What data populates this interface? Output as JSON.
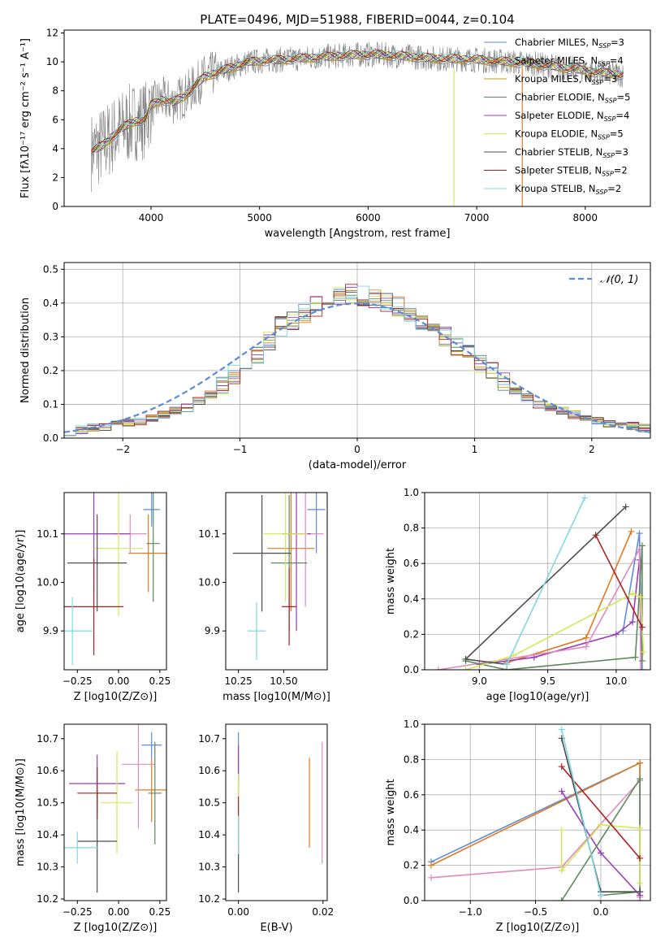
{
  "page_title": "PLATE=0496, MJD=51988, FIBERID=0044, z=0.104",
  "colors": {
    "blue": "#5b8bd9",
    "orange": "#e07b1f",
    "olive": "#b8a01c",
    "green": "#5c8a5c",
    "purple": "#9a3cb8",
    "yellow": "#d4e85a",
    "gray": "#4d4d4d",
    "red": "#b01f1f",
    "cyan": "#7fd8e0",
    "pink": "#e08ac0",
    "data": "#808080"
  },
  "chart_data": [
    {
      "id": "spectrum",
      "type": "line",
      "title": "PLATE=0496, MJD=51988, FIBERID=0044, z=0.104",
      "xlabel": "wavelength [Angstrom, rest frame]",
      "ylabel": "Flux [fλ10⁻¹⁷ erg cm⁻² s⁻¹ A⁻¹]",
      "xlim": [
        3200,
        8600
      ],
      "ylim": [
        0,
        12.2
      ],
      "xticks": [
        4000,
        5000,
        6000,
        7000,
        8000
      ],
      "yticks": [
        0,
        2,
        4,
        6,
        8,
        10,
        12
      ],
      "legend_position": "right",
      "continuum": {
        "x": [
          3450,
          3550,
          3650,
          3750,
          3850,
          3950,
          4000,
          4100,
          4200,
          4300,
          4400,
          4500,
          4700,
          4900,
          5100,
          5300,
          5500,
          5700,
          5900,
          6100,
          6300,
          6500,
          6700,
          6900,
          7100,
          7300,
          7500,
          7700,
          7900,
          8100,
          8350
        ],
        "y": [
          3.8,
          4.2,
          4.9,
          5.5,
          5.9,
          6.0,
          7.0,
          7.4,
          7.2,
          7.6,
          8.3,
          9.0,
          9.5,
          10.0,
          10.1,
          10.2,
          10.3,
          10.4,
          10.5,
          10.5,
          10.4,
          10.3,
          10.2,
          10.2,
          10.1,
          10.0,
          9.9,
          9.7,
          9.5,
          9.3,
          9.1
        ]
      },
      "series": [
        {
          "name": "Chabrier MILES, N_SSP=3",
          "color": "blue"
        },
        {
          "name": "Salpeter MILES, N_SSP=4",
          "color": "orange"
        },
        {
          "name": "Kroupa MILES, N_SSP=3",
          "color": "olive"
        },
        {
          "name": "Chabrier ELODIE, N_SSP=5",
          "color": "green"
        },
        {
          "name": "Salpeter ELODIE, N_SSP=4",
          "color": "purple"
        },
        {
          "name": "Kroupa ELODIE, N_SSP=5",
          "color": "yellow"
        },
        {
          "name": "Chabrier STELIB, N_SSP=3",
          "color": "gray"
        },
        {
          "name": "Salpeter STELIB, N_SSP=2",
          "color": "red"
        },
        {
          "name": "Kroupa STELIB, N_SSP=2",
          "color": "cyan"
        }
      ],
      "legend": [
        {
          "pre": "Chabrier MILES, N",
          "sub": "SSP",
          "post": "=3",
          "color": "blue"
        },
        {
          "pre": "Salpeter MILES, N",
          "sub": "SSP",
          "post": "=4",
          "color": "orange"
        },
        {
          "pre": "Kroupa MILES, N",
          "sub": "SSP",
          "post": "=3",
          "color": "olive"
        },
        {
          "pre": "Chabrier ELODIE, N",
          "sub": "SSP",
          "post": "=5",
          "color": "green"
        },
        {
          "pre": "Salpeter ELODIE, N",
          "sub": "SSP",
          "post": "=4",
          "color": "purple"
        },
        {
          "pre": "Kroupa ELODIE, N",
          "sub": "SSP",
          "post": "=5",
          "color": "yellow"
        },
        {
          "pre": "Chabrier STELIB, N",
          "sub": "SSP",
          "post": "=3",
          "color": "gray"
        },
        {
          "pre": "Salpeter STELIB, N",
          "sub": "SSP",
          "post": "=2",
          "color": "red"
        },
        {
          "pre": "Kroupa STELIB, N",
          "sub": "SSP",
          "post": "=2",
          "color": "cyan"
        }
      ],
      "vertical_spikes": [
        {
          "x": 6790,
          "color": "yellow"
        },
        {
          "x": 7420,
          "color": "orange"
        }
      ]
    },
    {
      "id": "residuals",
      "type": "line",
      "xlabel": "(data-model)/error",
      "ylabel": "Normed distribution",
      "xlim": [
        -2.5,
        2.5
      ],
      "ylim": [
        0,
        0.52
      ],
      "xticks": [
        -2,
        -1,
        0,
        1,
        2
      ],
      "yticks": [
        0.0,
        0.1,
        0.2,
        0.3,
        0.4,
        0.5
      ],
      "grid": true,
      "legend_position": "top-right",
      "reference_curve": {
        "name": "N(0,1)",
        "legend_text": "𝒩(0, 1)",
        "color": "blue",
        "style": "dashed"
      },
      "bin_edges": [
        -2.5,
        -2.4,
        -2.3,
        -2.2,
        -2.1,
        -2.0,
        -1.9,
        -1.8,
        -1.7,
        -1.6,
        -1.5,
        -1.4,
        -1.3,
        -1.2,
        -1.1,
        -1.0,
        -0.9,
        -0.8,
        -0.7,
        -0.6,
        -0.5,
        -0.4,
        -0.3,
        -0.2,
        -0.1,
        0.0,
        0.1,
        0.2,
        0.3,
        0.4,
        0.5,
        0.6,
        0.7,
        0.8,
        0.9,
        1.0,
        1.1,
        1.2,
        1.3,
        1.4,
        1.5,
        1.6,
        1.7,
        1.8,
        1.9,
        2.0,
        2.1,
        2.2,
        2.3,
        2.4,
        2.5
      ],
      "histogram": [
        0.02,
        0.025,
        0.03,
        0.035,
        0.04,
        0.045,
        0.05,
        0.06,
        0.07,
        0.08,
        0.09,
        0.11,
        0.13,
        0.16,
        0.19,
        0.21,
        0.25,
        0.29,
        0.33,
        0.35,
        0.37,
        0.39,
        0.41,
        0.42,
        0.43,
        0.42,
        0.41,
        0.4,
        0.39,
        0.37,
        0.35,
        0.33,
        0.3,
        0.27,
        0.25,
        0.22,
        0.2,
        0.17,
        0.14,
        0.12,
        0.1,
        0.09,
        0.08,
        0.07,
        0.06,
        0.05,
        0.045,
        0.04,
        0.035,
        0.03
      ]
    },
    {
      "id": "z-age",
      "type": "scatter",
      "xlabel": "Z [log10(Z/Z⊙)]",
      "ylabel": "age  [log10(age/yr)]",
      "xlim": [
        -0.33,
        0.29
      ],
      "ylim": [
        9.82,
        10.185
      ],
      "xticks": [
        -0.25,
        0.0,
        0.25
      ],
      "yticks": [
        9.9,
        10.0,
        10.1
      ],
      "points": [
        {
          "color": "blue",
          "x": 0.2,
          "y": 10.15,
          "xerr": 0.05,
          "yerr": 0.035
        },
        {
          "color": "orange",
          "x": 0.18,
          "y": 10.06,
          "xerr": 0.12,
          "yerr": 0.08
        },
        {
          "color": "pink",
          "x": 0.07,
          "y": 10.1,
          "xerr": 0.1,
          "yerr": 0.04
        },
        {
          "color": "green",
          "x": 0.21,
          "y": 10.08,
          "xerr": 0.04,
          "yerr": 0.12
        },
        {
          "color": "purple",
          "x": -0.15,
          "y": 10.1,
          "xerr": 0.22,
          "yerr": 0.12
        },
        {
          "color": "yellow",
          "x": 0.0,
          "y": 10.07,
          "xerr": 0.15,
          "yerr": 0.14
        },
        {
          "color": "gray",
          "x": -0.13,
          "y": 10.04,
          "xerr": 0.18,
          "yerr": 0.1
        },
        {
          "color": "red",
          "x": -0.15,
          "y": 9.95,
          "xerr": 0.18,
          "yerr": 0.1
        },
        {
          "color": "cyan",
          "x": -0.28,
          "y": 9.9,
          "xerr": 0.12,
          "yerr": 0.07
        }
      ]
    },
    {
      "id": "mass-age",
      "type": "scatter",
      "xlabel": "mass [log10(M/M⊙)]",
      "ylabel": "",
      "xlim": [
        10.18,
        10.74
      ],
      "ylim": [
        9.82,
        10.185
      ],
      "xticks": [
        10.25,
        10.5
      ],
      "yticks": [
        9.9,
        10.0,
        10.1
      ],
      "points": [
        {
          "color": "blue",
          "x": 10.68,
          "y": 10.15,
          "xerr": 0.05,
          "yerr": 0.09
        },
        {
          "color": "orange",
          "x": 10.54,
          "y": 10.07,
          "xerr": 0.13,
          "yerr": 0.13
        },
        {
          "color": "pink",
          "x": 10.62,
          "y": 10.1,
          "xerr": 0.1,
          "yerr": 0.15
        },
        {
          "color": "green",
          "x": 10.53,
          "y": 10.04,
          "xerr": 0.1,
          "yerr": 0.14
        },
        {
          "color": "purple",
          "x": 10.57,
          "y": 10.1,
          "xerr": 0.08,
          "yerr": 0.2
        },
        {
          "color": "yellow",
          "x": 10.51,
          "y": 10.1,
          "xerr": 0.12,
          "yerr": 0.14
        },
        {
          "color": "gray",
          "x": 10.38,
          "y": 10.06,
          "xerr": 0.16,
          "yerr": 0.12
        },
        {
          "color": "red",
          "x": 10.53,
          "y": 9.95,
          "xerr": 0.04,
          "yerr": 0.08
        },
        {
          "color": "cyan",
          "x": 10.35,
          "y": 9.9,
          "xerr": 0.05,
          "yerr": 0.06
        }
      ]
    },
    {
      "id": "age-weight",
      "type": "line",
      "xlabel": "age  [log10(age/yr)]",
      "ylabel": "mass weight",
      "xlim": [
        8.6,
        10.25
      ],
      "ylim": [
        0.0,
        1.0
      ],
      "xticks": [
        9.0,
        9.5,
        10.0
      ],
      "yticks": [
        0.0,
        0.2,
        0.4,
        0.6,
        0.8,
        1.0
      ],
      "grid": true,
      "series": [
        {
          "color": "blue",
          "x": [
            10.05,
            10.17,
            10.19
          ],
          "y": [
            0.22,
            0.77,
            0.0
          ]
        },
        {
          "color": "orange",
          "x": [
            10.11,
            9.78,
            9.2
          ],
          "y": [
            0.78,
            0.18,
            0.04
          ]
        },
        {
          "color": "purple",
          "x": [
            9.0,
            9.4,
            10.0,
            10.12,
            10.17
          ],
          "y": [
            0.03,
            0.07,
            0.2,
            0.27,
            0.62
          ]
        },
        {
          "color": "pink",
          "x": [
            8.7,
            9.78,
            10.17,
            10.18
          ],
          "y": [
            0.0,
            0.13,
            0.68,
            0.0
          ]
        },
        {
          "color": "green",
          "x": [
            8.9,
            9.2,
            10.14,
            10.19,
            10.19
          ],
          "y": [
            0.05,
            0.0,
            0.07,
            0.7,
            0.05
          ]
        },
        {
          "color": "yellow",
          "x": [
            8.9,
            9.25,
            10.12,
            10.18,
            10.2
          ],
          "y": [
            0.0,
            0.08,
            0.43,
            0.41,
            0.1
          ]
        },
        {
          "color": "gray",
          "x": [
            9.2,
            8.9,
            10.07
          ],
          "y": [
            0.03,
            0.06,
            0.92
          ]
        },
        {
          "color": "red",
          "x": [
            9.85,
            10.19
          ],
          "y": [
            0.76,
            0.24
          ]
        },
        {
          "color": "cyan",
          "x": [
            9.2,
            9.77
          ],
          "y": [
            0.03,
            0.97
          ]
        }
      ]
    },
    {
      "id": "z-mass",
      "type": "scatter",
      "xlabel": "Z [log10(Z/Z⊙)]",
      "ylabel": "mass [log10(M/M⊙)]",
      "xlim": [
        -0.33,
        0.29
      ],
      "ylim": [
        10.195,
        10.745
      ],
      "xticks": [
        -0.25,
        0.0,
        0.25
      ],
      "yticks": [
        10.2,
        10.3,
        10.4,
        10.5,
        10.6,
        10.7
      ],
      "points": [
        {
          "color": "blue",
          "x": 0.2,
          "y": 10.68,
          "xerr": 0.06,
          "yerr": 0.04
        },
        {
          "color": "orange",
          "x": 0.2,
          "y": 10.54,
          "xerr": 0.1,
          "yerr": 0.1
        },
        {
          "color": "pink",
          "x": 0.12,
          "y": 10.62,
          "xerr": 0.1,
          "yerr": 0.2
        },
        {
          "color": "green",
          "x": 0.22,
          "y": 10.53,
          "xerr": 0.04,
          "yerr": 0.16
        },
        {
          "color": "purple",
          "x": -0.13,
          "y": 10.56,
          "xerr": 0.17,
          "yerr": 0.09
        },
        {
          "color": "yellow",
          "x": -0.01,
          "y": 10.5,
          "xerr": 0.1,
          "yerr": 0.16
        },
        {
          "color": "gray",
          "x": -0.13,
          "y": 10.38,
          "xerr": 0.12,
          "yerr": 0.16
        },
        {
          "color": "red",
          "x": -0.13,
          "y": 10.53,
          "xerr": 0.12,
          "yerr": 0.08
        },
        {
          "color": "cyan",
          "x": -0.25,
          "y": 10.36,
          "xerr": 0.12,
          "yerr": 0.05
        }
      ]
    },
    {
      "id": "ebv-mass",
      "type": "scatter",
      "xlabel": "E(B-V)",
      "ylabel": "",
      "xlim": [
        -0.003,
        0.021
      ],
      "ylim": [
        10.195,
        10.745
      ],
      "xticks": [
        0.0,
        0.02
      ],
      "yticks": [
        10.2,
        10.3,
        10.4,
        10.5,
        10.6,
        10.7
      ],
      "points": [
        {
          "color": "blue",
          "x": 0.0,
          "y": 10.64,
          "xerr": 0.0,
          "yerr": 0.08
        },
        {
          "color": "orange",
          "x": 0.0168,
          "y": 10.5,
          "xerr": 0.0,
          "yerr": 0.14
        },
        {
          "color": "pink",
          "x": 0.0198,
          "y": 10.5,
          "xerr": 0.0,
          "yerr": 0.19
        },
        {
          "color": "purple",
          "x": 0.0,
          "y": 10.6,
          "xerr": 0.0,
          "yerr": 0.08
        },
        {
          "color": "yellow",
          "x": 0.0,
          "y": 10.47,
          "xerr": 0.0,
          "yerr": 0.12
        },
        {
          "color": "gray",
          "x": 0.0,
          "y": 10.3,
          "xerr": 0.0,
          "yerr": 0.08
        },
        {
          "color": "red",
          "x": 0.0,
          "y": 10.45,
          "xerr": 0.0,
          "yerr": 0.07
        },
        {
          "color": "cyan",
          "x": 0.0,
          "y": 10.4,
          "xerr": 0.0,
          "yerr": 0.06
        }
      ]
    },
    {
      "id": "z-weight",
      "type": "line",
      "xlabel": "Z [log10(Z/Z⊙)]",
      "ylabel": "mass weight",
      "xlim": [
        -1.35,
        0.38
      ],
      "ylim": [
        0.0,
        1.0
      ],
      "xticks": [
        -1.0,
        -0.5,
        0.0
      ],
      "yticks": [
        0.0,
        0.2,
        0.4,
        0.6,
        0.8,
        1.0
      ],
      "grid": true,
      "series": [
        {
          "color": "blue",
          "x": [
            -1.3,
            0.3,
            0.3
          ],
          "y": [
            0.22,
            0.78,
            0.0
          ]
        },
        {
          "color": "orange",
          "x": [
            -1.3,
            0.3,
            0.3
          ],
          "y": [
            0.2,
            0.78,
            0.05
          ]
        },
        {
          "color": "pink",
          "x": [
            -1.3,
            -0.3,
            0.3,
            0.3
          ],
          "y": [
            0.13,
            0.19,
            0.68,
            0.02
          ]
        },
        {
          "color": "purple",
          "x": [
            -0.3,
            0.0,
            0.3
          ],
          "y": [
            0.62,
            0.27,
            0.03
          ]
        },
        {
          "color": "green",
          "x": [
            -0.3,
            0.3,
            0.3,
            0.0
          ],
          "y": [
            0.0,
            0.69,
            0.05,
            0.03
          ]
        },
        {
          "color": "yellow",
          "x": [
            -0.3,
            -0.3,
            0.0,
            0.3,
            0.3
          ],
          "y": [
            0.4,
            0.17,
            0.43,
            0.41,
            0.1
          ]
        },
        {
          "color": "gray",
          "x": [
            -0.3,
            0.0,
            0.3
          ],
          "y": [
            0.92,
            0.05,
            0.05
          ]
        },
        {
          "color": "red",
          "x": [
            -0.3,
            0.3
          ],
          "y": [
            0.76,
            0.24
          ]
        },
        {
          "color": "cyan",
          "x": [
            -0.3,
            0.0
          ],
          "y": [
            0.97,
            0.03
          ]
        }
      ]
    }
  ]
}
